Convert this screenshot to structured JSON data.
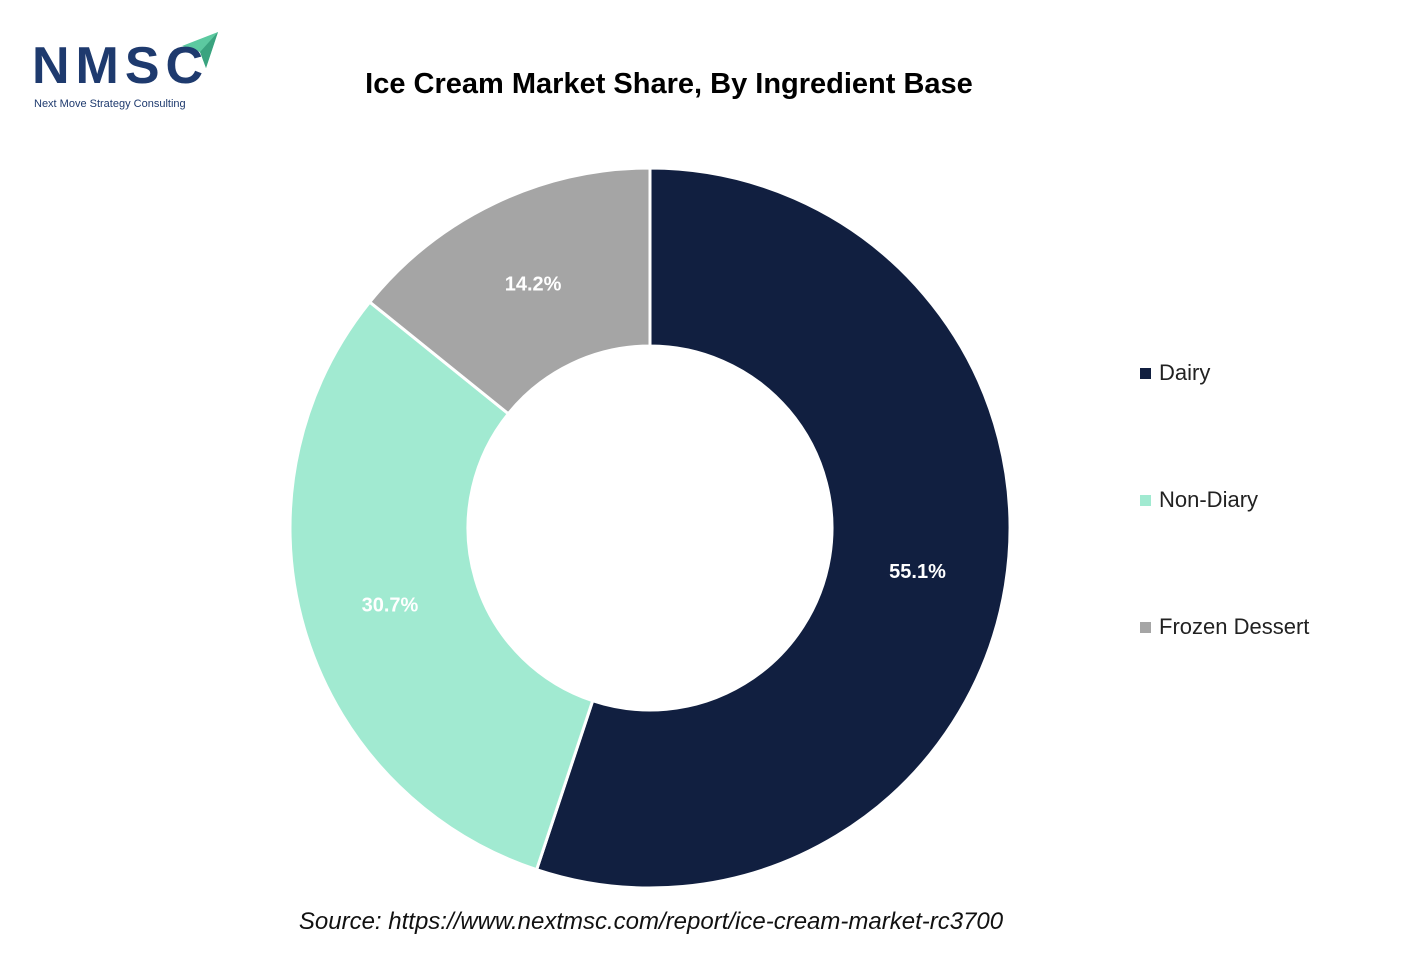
{
  "logo": {
    "text": "NMSC",
    "tagline": "Next Move Strategy Consulting"
  },
  "source": "Source: https://www.nextmsc.com/report/ice-cream-market-rc3700",
  "chart_data": {
    "type": "pie",
    "donut": true,
    "title": "Ice Cream Market Share, By Ingredient Base",
    "legend_position": "right",
    "categories": [
      "Dairy",
      "Non-Diary",
      "Frozen Dessert"
    ],
    "values": [
      55.1,
      30.7,
      14.2
    ],
    "labels": [
      "55.1%",
      "30.7%",
      "14.2%"
    ],
    "colors": [
      "#111f40",
      "#a1ead1",
      "#a5a5a5"
    ]
  }
}
